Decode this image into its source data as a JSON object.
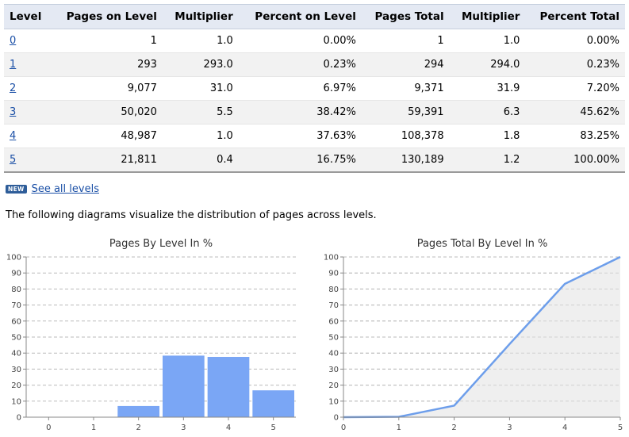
{
  "table": {
    "headers": [
      "Level",
      "Pages on Level",
      "Multiplier",
      "Percent on Level",
      "Pages Total",
      "Multiplier",
      "Percent Total"
    ],
    "rows": [
      [
        "0",
        "1",
        "1.0",
        "0.00%",
        "1",
        "1.0",
        "0.00%"
      ],
      [
        "1",
        "293",
        "293.0",
        "0.23%",
        "294",
        "294.0",
        "0.23%"
      ],
      [
        "2",
        "9,077",
        "31.0",
        "6.97%",
        "9,371",
        "31.9",
        "7.20%"
      ],
      [
        "3",
        "50,020",
        "5.5",
        "38.42%",
        "59,391",
        "6.3",
        "45.62%"
      ],
      [
        "4",
        "48,987",
        "1.0",
        "37.63%",
        "108,378",
        "1.8",
        "83.25%"
      ],
      [
        "5",
        "21,811",
        "0.4",
        "16.75%",
        "130,189",
        "1.2",
        "100.00%"
      ]
    ]
  },
  "see_all": {
    "badge": "NEW",
    "label": "See all levels"
  },
  "intro_text": "The following diagrams visualize the distribution of pages across levels.",
  "colors": {
    "accent": "#7aa6f5",
    "line": "#6d9eeb",
    "area": "#efefef",
    "grid": "#bbbbbb",
    "link": "#1a4fa6",
    "header_bg": "#e4e9f3"
  },
  "chart_data": [
    {
      "type": "bar",
      "title": "Pages By Level In %",
      "categories": [
        "0",
        "1",
        "2",
        "3",
        "4",
        "5"
      ],
      "values": [
        0.0,
        0.23,
        6.97,
        38.42,
        37.63,
        16.75
      ],
      "ylim": [
        0,
        100
      ],
      "yticks": [
        "0",
        "10",
        "20",
        "30",
        "40",
        "50",
        "60",
        "70",
        "80",
        "90",
        "100"
      ],
      "grid": true
    },
    {
      "type": "area",
      "title": "Pages Total By Level In %",
      "x": [
        "0",
        "1",
        "2",
        "3",
        "4",
        "5"
      ],
      "values": [
        0.0,
        0.23,
        7.2,
        45.62,
        83.25,
        100.0
      ],
      "ylim": [
        0,
        100
      ],
      "yticks": [
        "0",
        "10",
        "20",
        "30",
        "40",
        "50",
        "60",
        "70",
        "80",
        "90",
        "100"
      ],
      "grid": true
    }
  ]
}
